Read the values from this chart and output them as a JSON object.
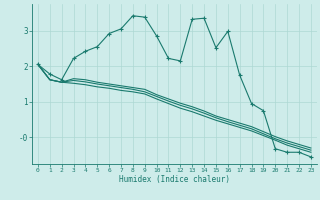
{
  "xlabel": "Humidex (Indice chaleur)",
  "bg_color": "#ceecea",
  "grid_color": "#aed8d4",
  "line_color": "#1a7a6e",
  "xlim": [
    -0.5,
    23.5
  ],
  "ylim": [
    -0.75,
    3.75
  ],
  "curve1_x": [
    0,
    1,
    2,
    3,
    4,
    5,
    6,
    7,
    8,
    9,
    10,
    11,
    12,
    13,
    14,
    15,
    16,
    17,
    18,
    19,
    20,
    21,
    22,
    23
  ],
  "curve1_y": [
    2.05,
    1.78,
    1.62,
    2.22,
    2.42,
    2.55,
    2.92,
    3.05,
    3.42,
    3.38,
    2.85,
    2.22,
    2.15,
    3.32,
    3.35,
    2.52,
    2.98,
    1.75,
    0.95,
    0.75,
    -0.32,
    -0.42,
    -0.42,
    -0.55
  ],
  "curve2_x": [
    0,
    1,
    2,
    3,
    4,
    5,
    6,
    7,
    8,
    9,
    10,
    11,
    12,
    13,
    14,
    15,
    16,
    17,
    18,
    19,
    20,
    21,
    22,
    23
  ],
  "curve2_y": [
    2.05,
    1.62,
    1.55,
    1.65,
    1.62,
    1.55,
    1.5,
    1.45,
    1.4,
    1.35,
    1.2,
    1.08,
    0.96,
    0.86,
    0.74,
    0.6,
    0.5,
    0.4,
    0.3,
    0.16,
    0.02,
    -0.1,
    -0.2,
    -0.3
  ],
  "curve3_x": [
    0,
    1,
    2,
    3,
    4,
    5,
    6,
    7,
    8,
    9,
    10,
    11,
    12,
    13,
    14,
    15,
    16,
    17,
    18,
    19,
    20,
    21,
    22,
    23
  ],
  "curve3_y": [
    2.05,
    1.62,
    1.55,
    1.6,
    1.56,
    1.5,
    1.45,
    1.4,
    1.35,
    1.28,
    1.15,
    1.02,
    0.9,
    0.8,
    0.68,
    0.55,
    0.44,
    0.34,
    0.24,
    0.1,
    -0.04,
    -0.16,
    -0.26,
    -0.36
  ],
  "curve4_x": [
    0,
    1,
    2,
    3,
    4,
    5,
    6,
    7,
    8,
    9,
    10,
    11,
    12,
    13,
    14,
    15,
    16,
    17,
    18,
    19,
    20,
    21,
    22,
    23
  ],
  "curve4_y": [
    2.05,
    1.62,
    1.55,
    1.52,
    1.48,
    1.42,
    1.38,
    1.32,
    1.28,
    1.22,
    1.08,
    0.95,
    0.82,
    0.72,
    0.6,
    0.48,
    0.38,
    0.28,
    0.18,
    0.05,
    -0.08,
    -0.22,
    -0.32,
    -0.42
  ]
}
